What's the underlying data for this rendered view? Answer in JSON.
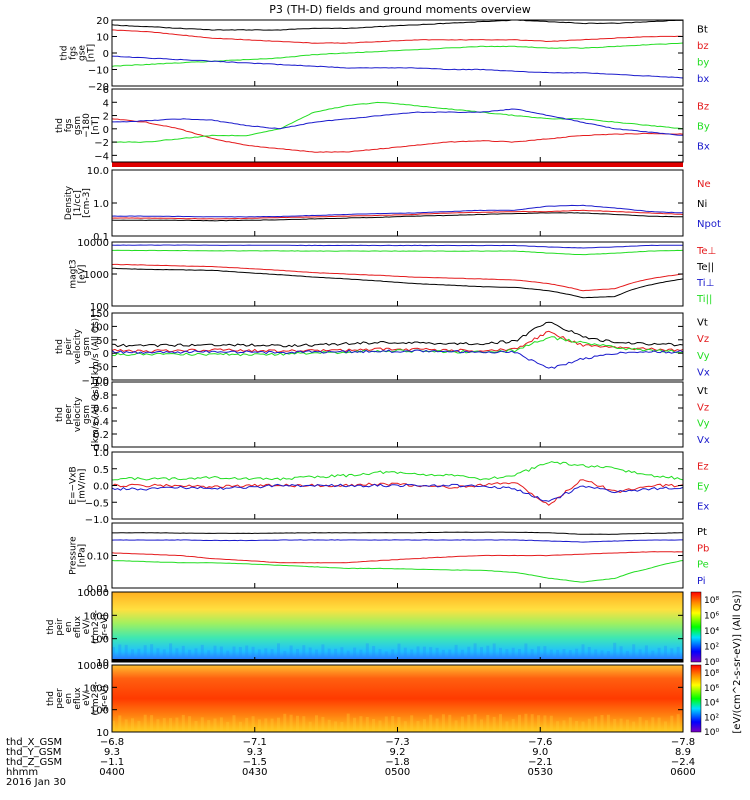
{
  "title": "P3 (TH-D) fields and ground moments overview",
  "colors": {
    "black": "#000000",
    "red": "#e41a1c",
    "green": "#22dd22",
    "blue": "#1a1acc"
  },
  "chart_data": [
    {
      "type": "line",
      "id": "fgs",
      "ylabel": [
        "thd",
        "fgs",
        "gse",
        "[nT]"
      ],
      "ylim": [
        -20,
        20
      ],
      "ticks": [
        "20",
        "10",
        "0",
        "−10",
        "−20"
      ],
      "tick_values": [
        20,
        10,
        0,
        -10,
        -20
      ],
      "series": [
        {
          "name": "Bt",
          "color": "black",
          "values": [
            17,
            16,
            15,
            14,
            14,
            14,
            15,
            15,
            16,
            17,
            18,
            19,
            20,
            19,
            18,
            18,
            19,
            20
          ]
        },
        {
          "name": "bz",
          "color": "red",
          "values": [
            14,
            13,
            11,
            9,
            8,
            7,
            6,
            6,
            7,
            8,
            8,
            8,
            8,
            7,
            8,
            9,
            10,
            10
          ]
        },
        {
          "name": "by",
          "color": "green",
          "values": [
            -8,
            -7,
            -6,
            -5,
            -4,
            -3,
            -1,
            0,
            1,
            2,
            3,
            4,
            4,
            3,
            3,
            4,
            5,
            6
          ]
        },
        {
          "name": "bx",
          "color": "blue",
          "values": [
            -2,
            -3,
            -4,
            -5,
            -6,
            -7,
            -8,
            -9,
            -9,
            -9,
            -10,
            -10,
            -11,
            -12,
            -12,
            -13,
            -14,
            -15
          ]
        }
      ]
    },
    {
      "type": "line",
      "id": "fgs-gsm",
      "ylabel": [
        "thd",
        "fgs",
        "gsm",
        "−180",
        "[nT]"
      ],
      "ylim": [
        -5,
        6
      ],
      "ticks": [
        "6",
        "4",
        "2",
        "0",
        "−2",
        "−4"
      ],
      "tick_values": [
        6,
        4,
        2,
        0,
        -2,
        -4
      ],
      "series": [
        {
          "name": "Bz",
          "color": "red",
          "values": [
            1.5,
            1,
            0,
            -1.5,
            -2.5,
            -3,
            -3.5,
            -3.5,
            -3,
            -2.5,
            -2,
            -1.8,
            -2,
            -1.5,
            -1,
            -0.8,
            -0.7,
            -0.8
          ]
        },
        {
          "name": "By",
          "color": "green",
          "values": [
            -2,
            -2,
            -1.5,
            -1,
            -1,
            0,
            2.5,
            3.5,
            4,
            3.5,
            3,
            2.5,
            2,
            1.5,
            1.5,
            1,
            0.5,
            0
          ]
        },
        {
          "name": "Bx",
          "color": "blue",
          "values": [
            1,
            1.2,
            1.5,
            1.3,
            0.5,
            0,
            1,
            1.5,
            2,
            2.5,
            2.5,
            2.5,
            3,
            2,
            1,
            0,
            -0.5,
            -1
          ]
        }
      ]
    },
    {
      "type": "line",
      "id": "density",
      "ylabel": [
        "Density",
        "[1/cc]",
        "[cm-3]"
      ],
      "ylim": [
        0.1,
        10
      ],
      "scale": "log",
      "ticks": [
        "10.0",
        "1.0",
        "0.1"
      ],
      "tick_values": [
        10,
        1,
        0.1
      ],
      "series": [
        {
          "name": "Ne",
          "color": "red",
          "values": [
            0.35,
            0.35,
            0.34,
            0.33,
            0.34,
            0.36,
            0.38,
            0.4,
            0.42,
            0.45,
            0.5,
            0.52,
            0.55,
            0.55,
            0.6,
            0.55,
            0.5,
            0.45
          ]
        },
        {
          "name": "Ni",
          "color": "black",
          "values": [
            0.3,
            0.3,
            0.3,
            0.29,
            0.3,
            0.31,
            0.33,
            0.35,
            0.37,
            0.4,
            0.42,
            0.45,
            0.48,
            0.5,
            0.5,
            0.45,
            0.4,
            0.38
          ]
        },
        {
          "name": "Npot",
          "color": "blue",
          "values": [
            0.4,
            0.4,
            0.39,
            0.38,
            0.38,
            0.39,
            0.42,
            0.45,
            0.48,
            0.5,
            0.55,
            0.6,
            0.6,
            0.8,
            0.85,
            0.7,
            0.55,
            0.5
          ]
        }
      ]
    },
    {
      "type": "line",
      "id": "temp",
      "ylabel": [
        "magt3",
        "[eV]"
      ],
      "ylim": [
        100,
        10000
      ],
      "scale": "log",
      "ticks": [
        "10000",
        "1000",
        "100"
      ],
      "tick_values": [
        10000,
        1000,
        100
      ],
      "series": [
        {
          "name": "Te⊥",
          "color": "red",
          "values": [
            2000,
            1900,
            1800,
            1700,
            1500,
            1300,
            1100,
            1000,
            900,
            800,
            750,
            700,
            650,
            500,
            300,
            350,
            700,
            1000
          ]
        },
        {
          "name": "Te||",
          "color": "black",
          "values": [
            1500,
            1400,
            1350,
            1300,
            1100,
            950,
            800,
            700,
            600,
            500,
            450,
            400,
            380,
            300,
            180,
            200,
            450,
            700
          ]
        },
        {
          "name": "Ti⊥",
          "color": "blue",
          "values": [
            8000,
            8000,
            8000,
            7900,
            7900,
            7900,
            7800,
            7800,
            7800,
            7800,
            7800,
            7800,
            7800,
            7000,
            6500,
            7000,
            7800,
            8000
          ]
        },
        {
          "name": "Ti||",
          "color": "green",
          "values": [
            5500,
            5400,
            5400,
            5300,
            5300,
            5300,
            5200,
            5200,
            5200,
            5200,
            5200,
            5200,
            5200,
            4500,
            4000,
            4500,
            5200,
            5500
          ]
        }
      ]
    },
    {
      "type": "line",
      "id": "vel-i",
      "ylabel": [
        "thd",
        "peir",
        "velocity",
        "gsm",
        "[km/s (All Qs)]"
      ],
      "ylim": [
        -100,
        150
      ],
      "ticks": [
        "150",
        "100",
        "50",
        "0",
        "−50",
        "−100"
      ],
      "tick_values": [
        150,
        100,
        50,
        0,
        -50,
        -100
      ],
      "series": [
        {
          "name": "Vt",
          "color": "black",
          "values": [
            30,
            28,
            30,
            32,
            30,
            28,
            30,
            35,
            40,
            38,
            36,
            35,
            45,
            120,
            60,
            40,
            35,
            30
          ]
        },
        {
          "name": "Vz",
          "color": "red",
          "values": [
            10,
            8,
            10,
            12,
            10,
            8,
            10,
            12,
            15,
            14,
            12,
            10,
            15,
            80,
            30,
            20,
            15,
            10
          ]
        },
        {
          "name": "Vy",
          "color": "green",
          "values": [
            -5,
            -3,
            -5,
            -4,
            -5,
            -3,
            0,
            5,
            10,
            8,
            6,
            5,
            10,
            60,
            40,
            20,
            10,
            5
          ]
        },
        {
          "name": "Vx",
          "color": "blue",
          "values": [
            5,
            3,
            5,
            6,
            5,
            3,
            5,
            6,
            8,
            7,
            6,
            5,
            5,
            -60,
            -20,
            0,
            5,
            5
          ]
        }
      ]
    },
    {
      "type": "line",
      "id": "vel-e",
      "ylabel": [
        "thd",
        "peer",
        "velocity",
        "gsm",
        "[km/s (All Qs)]"
      ],
      "ylim": [
        0,
        1
      ],
      "ticks": [
        "1.0",
        "0.8",
        "0.6",
        "0.4",
        "0.2",
        "0.0"
      ],
      "tick_values": [
        1,
        0.8,
        0.6,
        0.4,
        0.2,
        0
      ],
      "series": [
        {
          "name": "Vt",
          "color": "black",
          "values": []
        },
        {
          "name": "Vz",
          "color": "red",
          "values": []
        },
        {
          "name": "Vy",
          "color": "green",
          "values": []
        },
        {
          "name": "Vx",
          "color": "blue",
          "values": []
        }
      ]
    },
    {
      "type": "line",
      "id": "efield",
      "ylabel": [
        "E=−VxB",
        "[mV/m]"
      ],
      "ylim": [
        -1,
        1
      ],
      "ticks": [
        "1.0",
        "0.5",
        "0.0",
        "−0.5",
        "−1.0"
      ],
      "tick_values": [
        1,
        0.5,
        0,
        -0.5,
        -1
      ],
      "series": [
        {
          "name": "Ez",
          "color": "red",
          "values": [
            0,
            0,
            0,
            -0.05,
            0,
            0,
            0,
            0,
            0.05,
            0,
            -0.05,
            0,
            0.1,
            -0.6,
            0.2,
            -0.2,
            0,
            0
          ]
        },
        {
          "name": "Ey",
          "color": "green",
          "values": [
            0.2,
            0.2,
            0.2,
            0.25,
            0.2,
            0.2,
            0.25,
            0.3,
            0.4,
            0.35,
            0.3,
            0.2,
            0.3,
            0.7,
            0.6,
            0.5,
            0.3,
            0.2
          ]
        },
        {
          "name": "Ex",
          "color": "blue",
          "values": [
            -0.1,
            -0.1,
            -0.05,
            -0.1,
            -0.05,
            0,
            0,
            0,
            0,
            0,
            0,
            0,
            -0.1,
            -0.5,
            0,
            -0.2,
            -0.1,
            -0.05
          ]
        }
      ]
    },
    {
      "type": "line",
      "id": "pressure",
      "ylabel": [
        "Pressure",
        "[nPa]"
      ],
      "ylim": [
        0.01,
        1
      ],
      "scale": "log",
      "ticks": [
        "0.10",
        "0.01"
      ],
      "tick_values": [
        0.1,
        0.01
      ],
      "series": [
        {
          "name": "Pt",
          "color": "black",
          "values": [
            0.5,
            0.5,
            0.49,
            0.48,
            0.48,
            0.49,
            0.5,
            0.5,
            0.5,
            0.5,
            0.52,
            0.52,
            0.52,
            0.5,
            0.45,
            0.45,
            0.48,
            0.5
          ]
        },
        {
          "name": "Pb",
          "color": "red",
          "values": [
            0.12,
            0.11,
            0.1,
            0.08,
            0.07,
            0.06,
            0.06,
            0.06,
            0.07,
            0.08,
            0.09,
            0.1,
            0.1,
            0.1,
            0.11,
            0.12,
            0.13,
            0.13
          ]
        },
        {
          "name": "Pe",
          "color": "green",
          "values": [
            0.07,
            0.065,
            0.06,
            0.06,
            0.055,
            0.05,
            0.045,
            0.04,
            0.04,
            0.038,
            0.036,
            0.035,
            0.03,
            0.02,
            0.015,
            0.02,
            0.04,
            0.07
          ]
        },
        {
          "name": "Pi",
          "color": "blue",
          "values": [
            0.3,
            0.3,
            0.3,
            0.29,
            0.29,
            0.3,
            0.3,
            0.3,
            0.3,
            0.3,
            0.3,
            0.3,
            0.3,
            0.28,
            0.26,
            0.28,
            0.3,
            0.3
          ]
        }
      ]
    },
    {
      "type": "heatmap",
      "id": "spec-i",
      "ylabel": [
        "thd",
        "peir",
        "en",
        "eflux",
        "eV/",
        "(cm2-s-",
        "sr-eV)"
      ],
      "ylim": [
        10,
        10000
      ],
      "scale": "log",
      "ticks": [
        "10000",
        "1000",
        "100",
        "10"
      ],
      "tick_values": [
        10000,
        1000,
        100,
        10
      ]
    },
    {
      "type": "heatmap",
      "id": "spec-e",
      "ylabel": [
        "thd",
        "peer",
        "en",
        "eflux",
        "eV/",
        "(cm2-s-",
        "sr-eV)"
      ],
      "ylim": [
        10,
        10000
      ],
      "scale": "log",
      "ticks": [
        "10000",
        "1000",
        "100",
        "10"
      ],
      "tick_values": [
        10000,
        1000,
        100,
        10
      ]
    }
  ],
  "colorbar": {
    "label": "[eV/(cm^2-s-sr-eV)] (All Qs)]",
    "top": {
      "ticks": [
        "10⁸",
        "10⁶",
        "10⁴",
        "10²",
        "10⁰"
      ]
    },
    "bottom": {
      "ticks": [
        "10⁸",
        "10⁶",
        "10⁴",
        "10²",
        "10⁰"
      ]
    }
  },
  "xaxis": {
    "row_labels": [
      "thd_X_GSM",
      "thd_Y_GSM",
      "thd_Z_GSM",
      "hhmm",
      "2016 Jan 30"
    ],
    "columns": [
      {
        "x": "−6.8",
        "y": "9.3",
        "z": "−1.1",
        "t": "0400"
      },
      {
        "x": "−7.1",
        "y": "9.3",
        "z": "−1.5",
        "t": "0430"
      },
      {
        "x": "−7.3",
        "y": "9.2",
        "z": "−1.8",
        "t": "0500"
      },
      {
        "x": "−7.6",
        "y": "9.0",
        "z": "−2.1",
        "t": "0530"
      },
      {
        "x": "−7.8",
        "y": "8.9",
        "z": "−2.4",
        "t": "0600"
      }
    ]
  }
}
